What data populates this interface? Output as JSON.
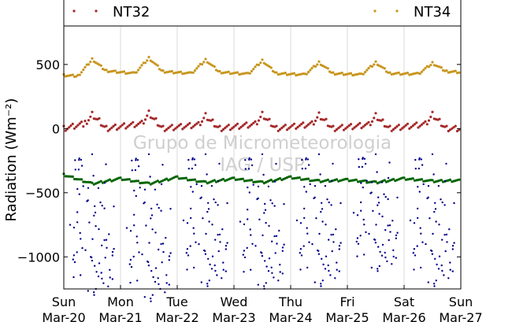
{
  "chart_data": {
    "type": "scatter",
    "ylabel": "Radiation (Wm⁻²)",
    "xlabel": "",
    "ylim": [
      -1250,
      800
    ],
    "x_range_days": [
      "2016-03-20",
      "2016-03-27"
    ],
    "yticks": [
      500,
      0,
      -500,
      -1000
    ],
    "ytick_labels": [
      "500",
      "0",
      "−500",
      "−1000"
    ],
    "xticks": [
      {
        "day": "Sun",
        "date": "Mar-20"
      },
      {
        "day": "Mon",
        "date": "Mar-21"
      },
      {
        "day": "Tue",
        "date": "Mar-22"
      },
      {
        "day": "Wed",
        "date": "Mar-23"
      },
      {
        "day": "Thu",
        "date": "Mar-24"
      },
      {
        "day": "Fri",
        "date": "Mar-25"
      },
      {
        "day": "Sat",
        "date": "Mar-26"
      },
      {
        "day": "Sun",
        "date": "Mar-27"
      }
    ],
    "grid": "vertical",
    "legend": {
      "placement": "top",
      "entries": [
        "NT32",
        "NT34"
      ]
    },
    "watermark": [
      "Grupo de Micrometeorologia",
      "IAG / USP"
    ],
    "series": [
      {
        "name": "NT32",
        "color": "#a52a2a",
        "description_points": "daily profile (date, value)",
        "points": [
          [
            "2016-03-20",
            0
          ],
          [
            "2016-03-20T09:00",
            40
          ],
          [
            "2016-03-20T12:00",
            110
          ],
          [
            "2016-03-20T15:00",
            60
          ],
          [
            "2016-03-20T18:00",
            0
          ],
          [
            "2016-03-21T09:00",
            40
          ],
          [
            "2016-03-21T12:00",
            120
          ],
          [
            "2016-03-21T15:00",
            60
          ],
          [
            "2016-03-21T18:00",
            0
          ],
          [
            "2016-03-22T09:00",
            30
          ],
          [
            "2016-03-22T12:00",
            100
          ],
          [
            "2016-03-22T15:00",
            50
          ],
          [
            "2016-03-22T18:00",
            0
          ],
          [
            "2016-03-23T09:00",
            35
          ],
          [
            "2016-03-23T12:00",
            110
          ],
          [
            "2016-03-23T15:00",
            55
          ],
          [
            "2016-03-23T18:00",
            0
          ],
          [
            "2016-03-24T09:00",
            35
          ],
          [
            "2016-03-24T12:00",
            105
          ],
          [
            "2016-03-24T15:00",
            55
          ],
          [
            "2016-03-24T18:00",
            0
          ],
          [
            "2016-03-25T09:00",
            30
          ],
          [
            "2016-03-25T12:00",
            100
          ],
          [
            "2016-03-25T15:00",
            50
          ],
          [
            "2016-03-25T18:00",
            0
          ],
          [
            "2016-03-26T09:00",
            35
          ],
          [
            "2016-03-26T12:00",
            110
          ],
          [
            "2016-03-26T15:00",
            55
          ],
          [
            "2016-03-26T18:00",
            0
          ],
          [
            "2016-03-27",
            0
          ]
        ]
      },
      {
        "name": "NT34",
        "color": "#c8961e",
        "points": [
          [
            "2016-03-20",
            415
          ],
          [
            "2016-03-20T06:00",
            410
          ],
          [
            "2016-03-20T12:00",
            540
          ],
          [
            "2016-03-20T18:00",
            450
          ],
          [
            "2016-03-21T06:00",
            430
          ],
          [
            "2016-03-21T12:00",
            550
          ],
          [
            "2016-03-21T18:00",
            445
          ],
          [
            "2016-03-22T06:00",
            430
          ],
          [
            "2016-03-22T12:00",
            535
          ],
          [
            "2016-03-22T18:00",
            440
          ],
          [
            "2016-03-23T06:00",
            425
          ],
          [
            "2016-03-23T12:00",
            530
          ],
          [
            "2016-03-23T18:00",
            430
          ],
          [
            "2016-03-24T06:00",
            420
          ],
          [
            "2016-03-24T12:00",
            515
          ],
          [
            "2016-03-24T18:00",
            430
          ],
          [
            "2016-03-25T06:00",
            420
          ],
          [
            "2016-03-25T12:00",
            515
          ],
          [
            "2016-03-25T18:00",
            430
          ],
          [
            "2016-03-26T06:00",
            425
          ],
          [
            "2016-03-26T12:00",
            510
          ],
          [
            "2016-03-26T18:00",
            445
          ],
          [
            "2016-03-27",
            440
          ]
        ]
      },
      {
        "color": "#00008b",
        "points": [
          [
            "2016-03-20T12:00",
            -950
          ],
          [
            "2016-03-21T12:00",
            -1000
          ],
          [
            "2016-03-22T12:00",
            -880
          ],
          [
            "2016-03-23T12:00",
            -900
          ],
          [
            "2016-03-24T12:00",
            -880
          ],
          [
            "2016-03-25T12:00",
            -760
          ],
          [
            "2016-03-26T12:00",
            -880
          ]
        ]
      },
      {
        "color": "#006400",
        "points": [
          [
            "2016-03-20",
            -360
          ],
          [
            "2016-03-20T12:00",
            -430
          ],
          [
            "2016-03-21",
            -390
          ],
          [
            "2016-03-21T12:00",
            -430
          ],
          [
            "2016-03-22",
            -380
          ],
          [
            "2016-03-22T12:00",
            -420
          ],
          [
            "2016-03-23",
            -390
          ],
          [
            "2016-03-23T12:00",
            -420
          ],
          [
            "2016-03-24",
            -380
          ],
          [
            "2016-03-24T12:00",
            -410
          ],
          [
            "2016-03-25",
            -400
          ],
          [
            "2016-03-25T12:00",
            -420
          ],
          [
            "2016-03-26",
            -390
          ],
          [
            "2016-03-26T12:00",
            -410
          ],
          [
            "2016-03-27",
            -405
          ]
        ]
      }
    ]
  }
}
